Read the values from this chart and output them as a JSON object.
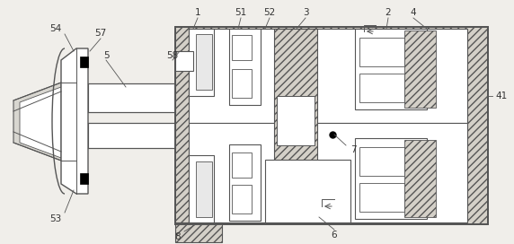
{
  "bg_color": "#f0eeea",
  "lc": "#555555",
  "hatch_fc": "#d4d0c8",
  "white": "#ffffff",
  "figsize": [
    5.72,
    2.72
  ],
  "dpi": 100
}
